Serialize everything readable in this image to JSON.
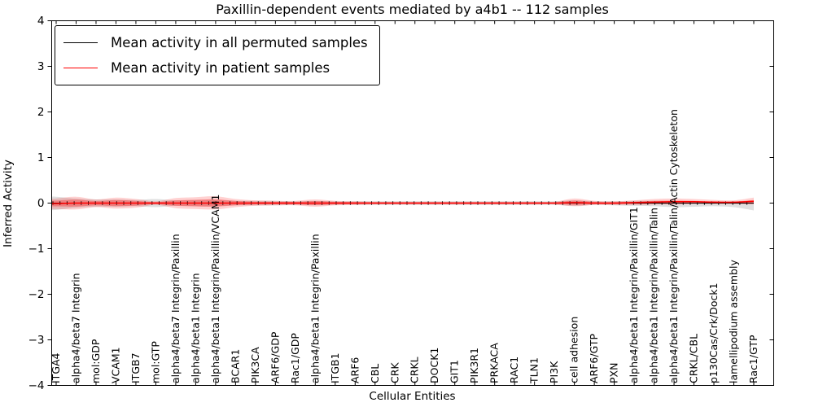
{
  "title": "Paxillin-dependent events mediated by a4b1 -- 112 samples",
  "axes": {
    "xlabel": "Cellular Entities",
    "ylabel": "Inferred Activity",
    "ytick_labels": [
      "4",
      "3",
      "2",
      "1",
      "0",
      "−1",
      "−2",
      "−3",
      "−4"
    ]
  },
  "legend": {
    "items": [
      {
        "label": "Mean activity in all permuted samples",
        "color": "#000000"
      },
      {
        "label": "Mean activity in patient samples",
        "color": "#ff0000"
      }
    ]
  },
  "chart_data": {
    "type": "line",
    "title": "Paxillin-dependent events mediated by a4b1 -- 112 samples",
    "xlabel": "Cellular Entities",
    "ylabel": "Inferred Activity",
    "ylim": [
      -4,
      4
    ],
    "yticks": [
      4,
      3,
      2,
      1,
      0,
      -1,
      -2,
      -3,
      -4
    ],
    "grid": false,
    "legend_position": "upper left",
    "categories": [
      "ITGA4",
      "alpha4/beta7 Integrin",
      "mol:GDP",
      "VCAM1",
      "ITGB7",
      "mol:GTP",
      "alpha4/beta7 Integrin/Paxillin",
      "alpha4/beta1 Integrin",
      "alpha4/beta1 Integrin/Paxillin/VCAM1",
      "BCAR1",
      "PIK3CA",
      "ARF6/GDP",
      "Rac1/GDP",
      "alpha4/beta1 Integrin/Paxillin",
      "ITGB1",
      "ARF6",
      "CBL",
      "CRK",
      "CRKL",
      "DOCK1",
      "GIT1",
      "PIK3R1",
      "PRKACA",
      "RAC1",
      "TLN1",
      "PI3K",
      "cell adhesion",
      "ARF6/GTP",
      "PXN",
      "alpha4/beta1 Integrin/Paxillin/GIT1",
      "alpha4/beta1 Integrin/Paxillin/Talin",
      "alpha4/beta1 Integrin/Paxillin/Talin/Actin Cytoskeleton",
      "CRKL/CBL",
      "p130Cas/Crk/Dock1",
      "lamellipodium assembly",
      "Rac1/GTP"
    ],
    "series": [
      {
        "name": "Mean activity in all permuted samples",
        "color": "#000000",
        "values": [
          0,
          0,
          0,
          0,
          0,
          0,
          0,
          0,
          0,
          0,
          0,
          0,
          0,
          0,
          0,
          0,
          0,
          0,
          0,
          0,
          0,
          0,
          0,
          0,
          0,
          0,
          0,
          0,
          0,
          0,
          0,
          0,
          0,
          0,
          0,
          0
        ]
      },
      {
        "name": "Mean activity in patient samples",
        "color": "#ff0000",
        "values": [
          -0.01,
          0,
          0,
          0,
          0,
          0,
          0,
          0,
          0,
          0,
          0,
          0,
          0,
          0,
          0,
          0,
          0,
          0,
          0,
          0,
          0,
          0,
          0,
          0,
          0,
          0,
          0.01,
          0,
          0,
          0.01,
          0.02,
          0.03,
          0.03,
          0.02,
          0.02,
          0.04
        ]
      }
    ],
    "bands": [
      {
        "name": "permuted-samples-range",
        "color": "rgba(0,0,0,0.12)",
        "upper": [
          0.14,
          0.1,
          0.08,
          0.08,
          0.07,
          0.09,
          0.06,
          0.07,
          0.07,
          0.05,
          0.05,
          0.05,
          0.04,
          0.05,
          0.04,
          0.04,
          0.04,
          0.04,
          0.04,
          0.04,
          0.04,
          0.04,
          0.04,
          0.04,
          0.04,
          0.04,
          0.06,
          0.04,
          0.04,
          0.05,
          0.05,
          0.04,
          0.03,
          0.03,
          0.03,
          0.03
        ],
        "lower": [
          -0.15,
          -0.1,
          -0.08,
          -0.08,
          -0.07,
          -0.09,
          -0.06,
          -0.07,
          -0.07,
          -0.05,
          -0.05,
          -0.05,
          -0.04,
          -0.05,
          -0.04,
          -0.04,
          -0.04,
          -0.04,
          -0.04,
          -0.04,
          -0.04,
          -0.04,
          -0.04,
          -0.04,
          -0.04,
          -0.04,
          -0.06,
          -0.04,
          -0.05,
          -0.06,
          -0.07,
          -0.09,
          -0.08,
          -0.07,
          -0.09,
          -0.16
        ]
      },
      {
        "name": "patient-samples-range",
        "color": "rgba(255,0,0,0.18)",
        "upper": [
          0.1,
          0.14,
          0.08,
          0.12,
          0.09,
          0.04,
          0.11,
          0.13,
          0.15,
          0.09,
          0.06,
          0.05,
          0.05,
          0.08,
          0.05,
          0.04,
          0.03,
          0.03,
          0.03,
          0.03,
          0.03,
          0.03,
          0.03,
          0.03,
          0.03,
          0.03,
          0.1,
          0.05,
          0.04,
          0.06,
          0.09,
          0.1,
          0.09,
          0.07,
          0.06,
          0.12
        ],
        "lower": [
          -0.13,
          -0.14,
          -0.09,
          -0.12,
          -0.1,
          -0.04,
          -0.11,
          -0.13,
          -0.14,
          -0.09,
          -0.06,
          -0.05,
          -0.05,
          -0.08,
          -0.05,
          -0.04,
          -0.03,
          -0.03,
          -0.03,
          -0.03,
          -0.03,
          -0.03,
          -0.03,
          -0.03,
          -0.03,
          -0.03,
          -0.07,
          -0.04,
          -0.04,
          -0.04,
          -0.03,
          -0.03,
          -0.02,
          -0.02,
          -0.02,
          -0.03
        ]
      }
    ]
  }
}
